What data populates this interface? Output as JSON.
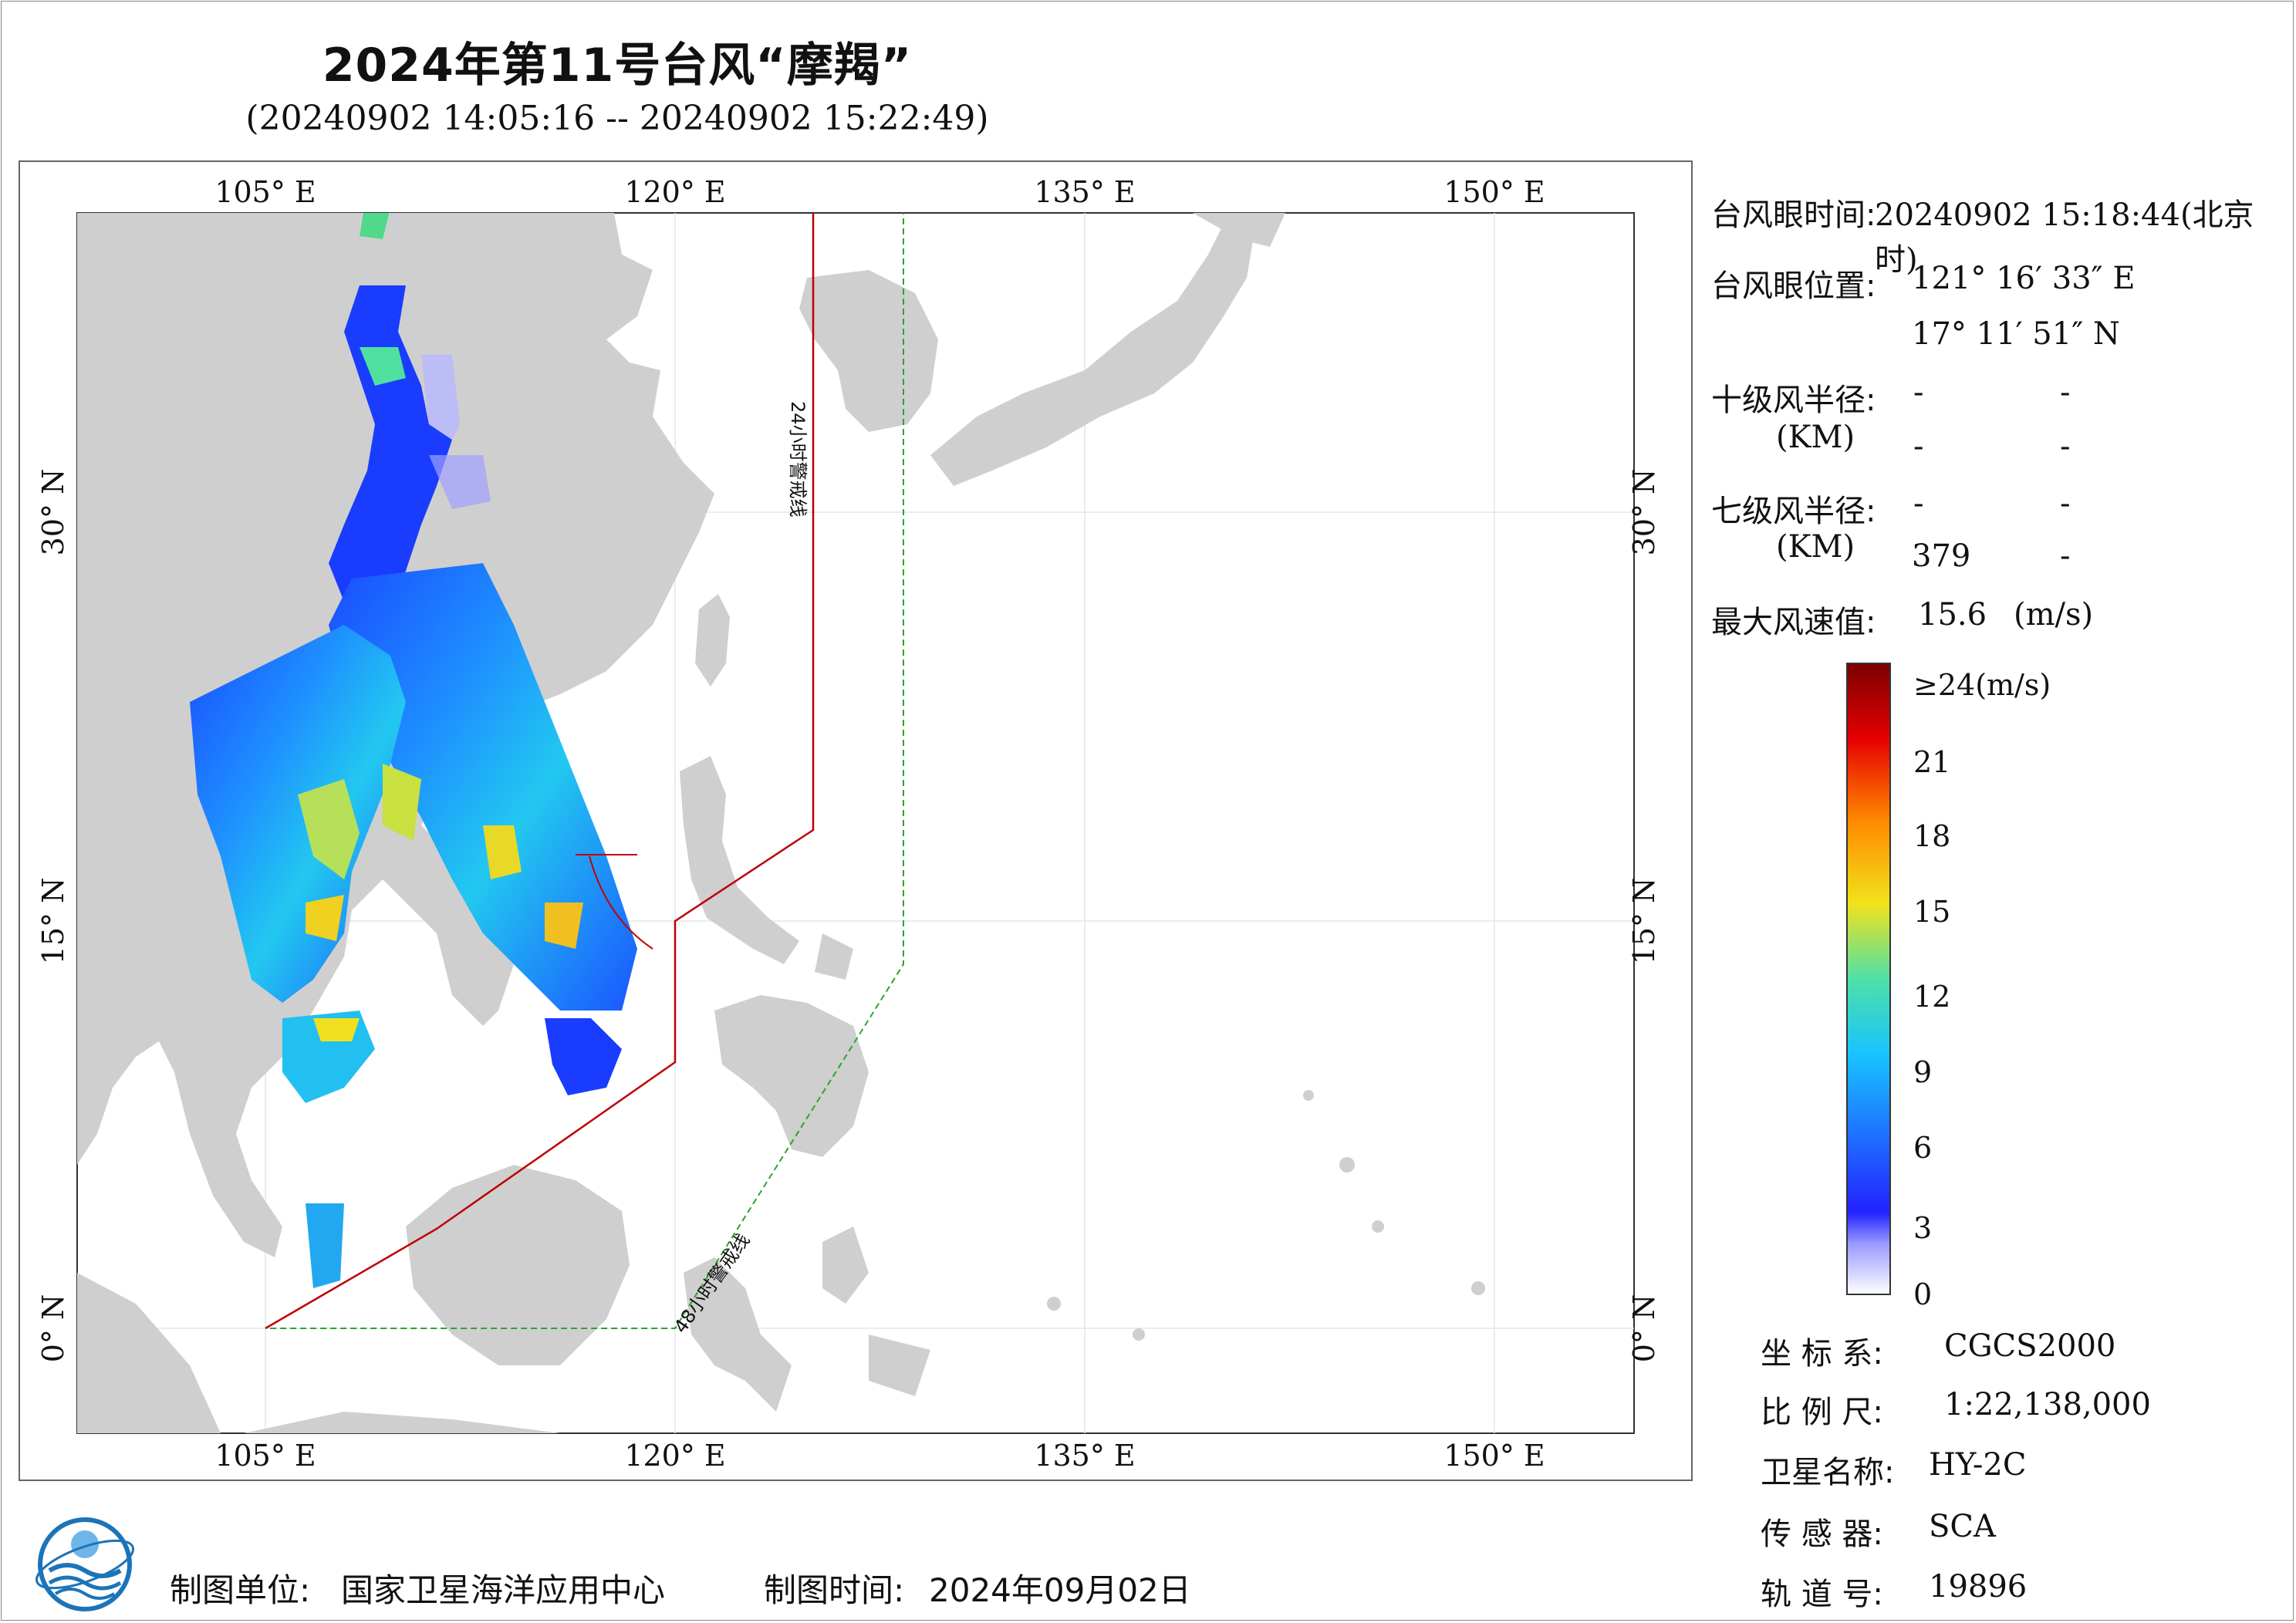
{
  "title": "2024年第11号台风“摩羯”",
  "subtitle": "(20240902 14:05:16 -- 20240902 15:22:49)",
  "map": {
    "lon_labels": [
      "105° E",
      "120° E",
      "135° E",
      "150° E"
    ],
    "lat_labels": [
      "30° N",
      "15° N",
      "0° N"
    ],
    "line_24h": "24小时警戒线",
    "line_48h": "48小时警戒线",
    "colors": {
      "land": "#cfcfcf",
      "sea": "#ffffff",
      "line_24h": "#c00000",
      "line_48h": "#2aa52a"
    }
  },
  "info": {
    "eye_time_label": "台风眼时间:",
    "eye_time_value": "20240902 15:18:44(北京时)",
    "eye_pos_label": "台风眼位置:",
    "eye_lon": "121° 16′ 33″ E",
    "eye_lat": "17° 11′ 51″ N",
    "r10_label": "十级风半径:",
    "r10_unit": "(KM)",
    "r10_values": [
      "-",
      "-",
      "-",
      "-"
    ],
    "r7_label": "七级风半径:",
    "r7_unit": "(KM)",
    "r7_values": [
      "-",
      "-",
      "379",
      "-"
    ],
    "max_wind_label": "最大风速值:",
    "max_wind_value": "15.6",
    "max_wind_unit": "(m/s)"
  },
  "colorbar": {
    "ticks": [
      "≥24(m/s)",
      "21",
      "18",
      "15",
      "12",
      "9",
      "6",
      "3",
      "0"
    ],
    "stops": [
      "#ffffff",
      "#3a2bff",
      "#1f6fff",
      "#19c3ff",
      "#4fe0a8",
      "#f2e21a",
      "#ff8a00",
      "#e60000",
      "#7a0000"
    ]
  },
  "meta": {
    "crs_label": "坐 标 系:",
    "crs_value": "CGCS2000",
    "scale_label": "比 例 尺:",
    "scale_value": "1:22,138,000",
    "sat_label": "卫星名称:",
    "sat_value": "HY-2C",
    "sensor_label": "传 感 器:",
    "sensor_value": "SCA",
    "orbit_label": "轨 道 号:",
    "orbit_value": "19896"
  },
  "footer": {
    "unit_label": "制图单位:",
    "unit_value": "国家卫星海洋应用中心",
    "date_label": "制图时间:",
    "date_value": "2024年09月02日"
  }
}
